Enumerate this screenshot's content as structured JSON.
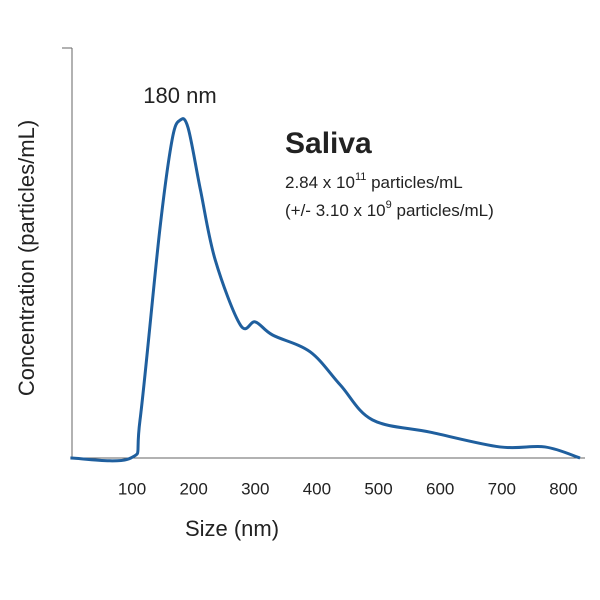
{
  "chart_data": {
    "type": "line",
    "title": "Saliva",
    "subtitle_lines": [
      [
        "2.84 x 10",
        "11",
        " particles/mL"
      ],
      [
        "(+/- 3.10 x 10",
        "9",
        " particles/mL)"
      ]
    ],
    "annotation": "180 nm",
    "x_label": "Size (nm)",
    "y_label": "Concentration (particles/mL)",
    "x": [
      0,
      98,
      113,
      145,
      165,
      178,
      191,
      211,
      235,
      276,
      300,
      328,
      389,
      438,
      490,
      584,
      697,
      770,
      827
    ],
    "series": [
      {
        "color": "#1f5f9e",
        "values": [
          0,
          0,
          9.3,
          55.6,
          77.6,
          82.4,
          80.5,
          65.4,
          48.3,
          32.4,
          33.2,
          30,
          25.9,
          17.8,
          9.3,
          6.3,
          2.7,
          2.7,
          0
        ]
      }
    ],
    "xlim": [
      0,
      835
    ],
    "ylim": [
      0,
      100
    ],
    "xticks": [
      100,
      200,
      300,
      400,
      500,
      600,
      700,
      800
    ]
  }
}
